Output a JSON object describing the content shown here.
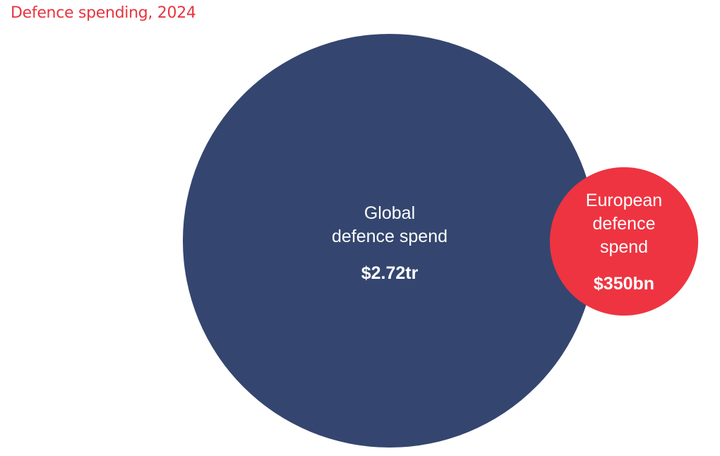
{
  "chart_data": {
    "type": "bubble",
    "title": "Defence spending, 2024",
    "colors": {
      "title": "#e8343f",
      "label": "#ffffff"
    },
    "items": [
      {
        "name": [
          "Global",
          "defence spend"
        ],
        "value": 2720,
        "value_label": "$2.72tr",
        "color": "#34466f"
      },
      {
        "name": [
          "European",
          "defence",
          "spend"
        ],
        "value": 350,
        "value_label": "$350bn",
        "color": "#ee3441"
      }
    ]
  }
}
